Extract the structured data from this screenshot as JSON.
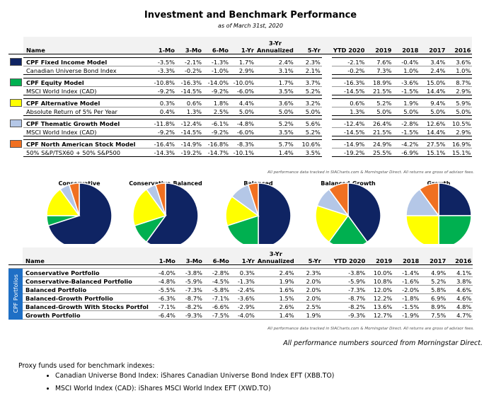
{
  "header": {
    "title": "Investment and Benchmark Performance",
    "subtitle": "as of March 31st, 2020"
  },
  "columns": [
    "Name",
    "1-Mo",
    "3-Mo",
    "6-Mo",
    "1-Yr",
    "3-Yr Annualized",
    "5-Yr",
    "YTD 2020",
    "2019",
    "2018",
    "2017",
    "2016"
  ],
  "table1": {
    "groups": [
      {
        "color": "#0f2463",
        "model": {
          "name": "CPF Fixed Income Model",
          "values": [
            "-3.5%",
            "-2.1%",
            "-1.3%",
            "1.7%",
            "2.4%",
            "2.3%",
            "-2.1%",
            "7.6%",
            "-0.4%",
            "3.4%",
            "3.6%"
          ]
        },
        "benchmark": {
          "name": "Canadian Universe Bond Index",
          "values": [
            "-3.3%",
            "-0.2%",
            "-1.0%",
            "2.9%",
            "3.1%",
            "2.1%",
            "-0.2%",
            "7.3%",
            "1.0%",
            "2.4%",
            "1.0%"
          ]
        }
      },
      {
        "color": "#00b050",
        "model": {
          "name": "CPF Equity Model",
          "values": [
            "-10.8%",
            "-16.3%",
            "-14.0%",
            "-10.0%",
            "1.7%",
            "3.7%",
            "-16.3%",
            "18.9%",
            "-3.6%",
            "15.0%",
            "8.7%"
          ]
        },
        "benchmark": {
          "name": "MSCI World Index (CAD)",
          "values": [
            "-9.2%",
            "-14.5%",
            "-9.2%",
            "-6.0%",
            "3.5%",
            "5.2%",
            "-14.5%",
            "21.5%",
            "-1.5%",
            "14.4%",
            "2.9%"
          ]
        }
      },
      {
        "color": "#ffff00",
        "model": {
          "name": "CPF Alternative Model",
          "values": [
            "0.3%",
            "0.6%",
            "1.8%",
            "4.4%",
            "3.6%",
            "3.2%",
            "0.6%",
            "5.2%",
            "1.9%",
            "9.4%",
            "5.9%"
          ]
        },
        "benchmark": {
          "name": "Absolute Return of 5% Per Year",
          "values": [
            "0.4%",
            "1.3%",
            "2.5%",
            "5.0%",
            "5.0%",
            "5.0%",
            "1.3%",
            "5.0%",
            "5.0%",
            "5.0%",
            "5.0%"
          ]
        }
      },
      {
        "color": "#b4c7e7",
        "model": {
          "name": "CPF Thematic Growth Model",
          "values": [
            "-11.8%",
            "-12.4%",
            "-6.1%",
            "-4.8%",
            "5.2%",
            "5.6%",
            "-12.4%",
            "26.4%",
            "-2.8%",
            "12.6%",
            "10.5%"
          ]
        },
        "benchmark": {
          "name": "MSCI World Index (CAD)",
          "values": [
            "-9.2%",
            "-14.5%",
            "-9.2%",
            "-6.0%",
            "3.5%",
            "5.2%",
            "-14.5%",
            "21.5%",
            "-1.5%",
            "14.4%",
            "2.9%"
          ]
        }
      },
      {
        "color": "#f07021",
        "model": {
          "name": "CPF North American Stock Model",
          "values": [
            "-16.4%",
            "-14.9%",
            "-16.8%",
            "-8.3%",
            "5.7%",
            "10.6%",
            "-14.9%",
            "24.9%",
            "-4.2%",
            "27.5%",
            "16.9%"
          ]
        },
        "benchmark": {
          "name": "50% S&P/TSX60 + 50% S&P500",
          "values": [
            "-14.3%",
            "-19.2%",
            "-14.7%",
            "-10.1%",
            "1.4%",
            "3.5%",
            "-19.2%",
            "25.5%",
            "-6.9%",
            "15.1%",
            "15.1%"
          ]
        }
      }
    ],
    "note": "All performance data tracked in SIACharts.com & Morningstar Direct. All returns are gross of advisor fees."
  },
  "pies": {
    "colors": [
      "#0f2463",
      "#00b050",
      "#ffff00",
      "#b4c7e7",
      "#f07021"
    ],
    "charts": [
      {
        "title": "Conservative",
        "values": [
          70,
          5,
          15,
          5,
          5
        ]
      },
      {
        "title": "Conservative-Balanced",
        "values": [
          60,
          10,
          20,
          5,
          5
        ]
      },
      {
        "title": "Balanced",
        "values": [
          50,
          20,
          15,
          10,
          5
        ]
      },
      {
        "title": "Balanced-Growth",
        "values": [
          40,
          20,
          20,
          10,
          10
        ]
      },
      {
        "title": "Growth",
        "values": [
          25,
          25,
          25,
          15,
          10
        ]
      }
    ]
  },
  "table2": {
    "side_label": "CPF Portfolios",
    "rows": [
      {
        "name": "Conservative Portfolio",
        "values": [
          "-4.0%",
          "-3.8%",
          "-2.8%",
          "0.3%",
          "2.4%",
          "2.3%",
          "-3.8%",
          "10.0%",
          "-1.4%",
          "4.9%",
          "4.1%"
        ]
      },
      {
        "name": "Conservative-Balanced Portfolio",
        "values": [
          "-4.8%",
          "-5.9%",
          "-4.5%",
          "-1.3%",
          "1.9%",
          "2.0%",
          "-5.9%",
          "10.8%",
          "-1.6%",
          "5.2%",
          "3.8%"
        ]
      },
      {
        "name": "Balanced Portfolio",
        "values": [
          "-5.5%",
          "-7.3%",
          "-5.8%",
          "-2.4%",
          "1.6%",
          "2.0%",
          "-7.3%",
          "12.0%",
          "-2.0%",
          "5.8%",
          "4.6%"
        ]
      },
      {
        "name": "Balanced-Growth Portfolio",
        "values": [
          "-6.3%",
          "-8.7%",
          "-7.1%",
          "-3.6%",
          "1.5%",
          "2.0%",
          "-8.7%",
          "12.2%",
          "-1.8%",
          "6.9%",
          "4.6%"
        ]
      },
      {
        "name": "Balanced-Growth With Stocks Portfol",
        "values": [
          "-7.1%",
          "-8.2%",
          "-6.6%",
          "-2.9%",
          "2.6%",
          "2.5%",
          "-8.2%",
          "13.6%",
          "-1.5%",
          "8.9%",
          "4.8%"
        ]
      },
      {
        "name": "Growth Portfolio",
        "values": [
          "-6.4%",
          "-9.3%",
          "-7.5%",
          "-4.0%",
          "1.4%",
          "1.9%",
          "-9.3%",
          "12.7%",
          "-1.9%",
          "7.5%",
          "4.7%"
        ]
      }
    ],
    "note": "All performance data tracked in SIACharts.com & Morningstar Direct. All returns are gross of advisor fees."
  },
  "source_note": "All performance numbers sourced from Morningstar Direct.",
  "proxy": {
    "title": "Proxy funds used for benchmark indexes:",
    "items": [
      "Canadian Universe Bond Index: iShares Canadian Universe Bond Index EFT (XBB.TO)",
      "MSCI World Index (CAD): iShares MSCI World Index EFT (XWD.TO)"
    ]
  }
}
